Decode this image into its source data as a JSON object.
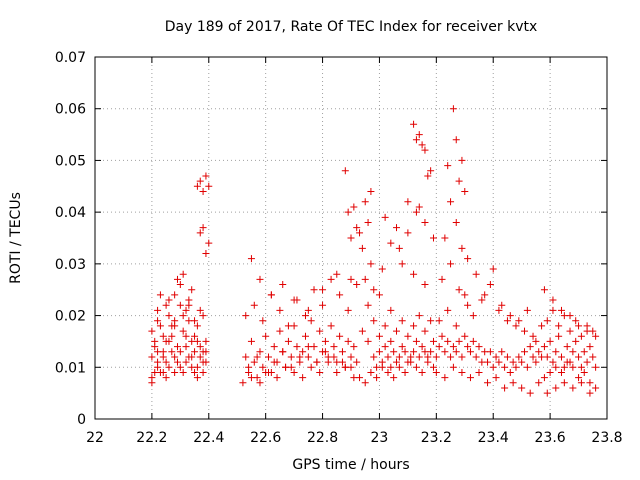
{
  "chart_data": {
    "type": "scatter",
    "title": "Day 189 of 2017, Rate Of TEC Index for receiver kvtx",
    "xlabel": "GPS time / hours",
    "ylabel": "ROTI / TECUs",
    "xlim": [
      22,
      23.8
    ],
    "ylim": [
      0,
      0.07
    ],
    "xticks": [
      "22",
      "22.2",
      "22.4",
      "22.6",
      "22.8",
      "23",
      "23.2",
      "23.4",
      "23.6",
      "23.8"
    ],
    "yticks": [
      "0",
      "0.01",
      "0.02",
      "0.03",
      "0.04",
      "0.05",
      "0.06",
      "0.07"
    ],
    "grid": true,
    "marker": "+",
    "marker_color": "#e00000",
    "grid_color": "#a0a0a0",
    "series": [
      {
        "x": [
          22.2,
          22.21,
          22.22,
          22.23,
          22.24,
          22.25,
          22.26,
          22.27,
          22.28,
          22.29,
          22.3,
          22.31,
          22.32,
          22.33,
          22.34,
          22.35,
          22.36,
          22.37,
          22.38,
          22.39,
          22.2,
          22.21,
          22.22,
          22.23,
          22.24,
          22.25,
          22.26,
          22.27,
          22.28,
          22.29,
          22.3,
          22.31,
          22.32,
          22.33,
          22.34,
          22.35,
          22.36,
          22.37,
          22.38,
          22.39,
          22.2,
          22.22,
          22.24,
          22.26,
          22.28,
          22.3,
          22.32,
          22.34,
          22.36,
          22.38,
          22.21,
          22.23,
          22.25,
          22.27,
          22.29,
          22.31,
          22.33,
          22.35,
          22.37,
          22.39,
          22.2,
          22.22,
          22.24,
          22.26,
          22.28,
          22.3,
          22.32,
          22.34,
          22.36,
          22.38,
          22.22,
          22.25,
          22.28,
          22.31,
          22.33,
          22.35,
          22.36,
          22.37,
          22.38,
          22.39,
          22.4,
          22.37,
          22.38,
          22.39,
          22.4,
          22.53,
          22.54,
          22.55,
          22.56,
          22.57,
          22.58,
          22.59,
          22.6,
          22.61,
          22.62,
          22.63,
          22.64,
          22.65,
          22.66,
          22.67,
          22.68,
          22.69,
          22.7,
          22.71,
          22.72,
          22.73,
          22.74,
          22.75,
          22.76,
          22.77,
          22.78,
          22.79,
          22.8,
          22.81,
          22.82,
          22.83,
          22.84,
          22.85,
          22.86,
          22.87,
          22.88,
          22.89,
          22.9,
          22.91,
          22.92,
          22.52,
          22.55,
          22.58,
          22.61,
          22.64,
          22.67,
          22.7,
          22.73,
          22.76,
          22.79,
          22.82,
          22.85,
          22.88,
          22.91,
          22.53,
          22.56,
          22.59,
          22.62,
          22.65,
          22.68,
          22.71,
          22.74,
          22.77,
          22.8,
          22.83,
          22.86,
          22.89,
          22.92,
          22.54,
          22.57,
          22.6,
          22.63,
          22.66,
          22.69,
          22.72,
          22.75,
          22.78,
          22.81,
          22.84,
          22.87,
          22.9,
          22.55,
          22.58,
          22.62,
          22.66,
          22.7,
          22.75,
          22.8,
          22.85,
          22.9,
          22.88,
          22.89,
          22.9,
          22.91,
          22.92,
          22.93,
          22.94,
          22.95,
          22.96,
          22.97,
          22.98,
          22.99,
          23.0,
          23.01,
          23.02,
          23.03,
          23.04,
          23.05,
          23.06,
          23.07,
          23.08,
          23.09,
          23.1,
          23.11,
          23.12,
          23.13,
          23.14,
          23.15,
          23.16,
          23.17,
          22.93,
          22.95,
          22.97,
          22.99,
          23.01,
          23.03,
          23.05,
          23.07,
          23.09,
          23.11,
          23.13,
          23.15,
          23.17,
          23.19,
          22.94,
          22.96,
          22.98,
          23.0,
          23.02,
          23.04,
          23.06,
          23.08,
          23.1,
          23.12,
          23.14,
          23.16,
          23.18,
          22.95,
          22.98,
          23.01,
          23.04,
          23.07,
          23.1,
          23.13,
          23.16,
          23.19,
          22.96,
          23.0,
          23.04,
          23.08,
          23.12,
          23.16,
          22.97,
          23.02,
          23.06,
          23.1,
          23.14,
          23.12,
          23.13,
          23.14,
          23.15,
          23.16,
          23.17,
          23.18,
          23.18,
          23.19,
          23.2,
          23.21,
          23.22,
          23.23,
          23.24,
          23.25,
          23.26,
          23.27,
          23.28,
          23.29,
          23.3,
          23.31,
          23.32,
          23.33,
          23.34,
          23.35,
          23.36,
          23.37,
          23.38,
          23.39,
          23.4,
          23.41,
          23.42,
          23.43,
          23.44,
          23.45,
          23.46,
          23.47,
          23.48,
          23.49,
          23.5,
          23.51,
          23.52,
          23.53,
          23.54,
          23.55,
          23.56,
          23.57,
          23.2,
          23.23,
          23.26,
          23.29,
          23.32,
          23.35,
          23.38,
          23.41,
          23.44,
          23.47,
          23.5,
          23.53,
          23.56,
          23.21,
          23.24,
          23.27,
          23.3,
          23.33,
          23.36,
          23.39,
          23.42,
          23.45,
          23.48,
          23.51,
          23.54,
          23.57,
          23.22,
          23.25,
          23.28,
          23.31,
          23.34,
          23.37,
          23.4,
          23.43,
          23.46,
          23.49,
          23.52,
          23.55,
          23.24,
          23.26,
          23.27,
          23.28,
          23.29,
          23.3,
          23.25,
          23.27,
          23.29,
          23.31,
          23.23,
          23.58,
          23.59,
          23.6,
          23.61,
          23.62,
          23.63,
          23.64,
          23.65,
          23.66,
          23.67,
          23.68,
          23.69,
          23.7,
          23.71,
          23.72,
          23.73,
          23.74,
          23.75,
          23.76,
          23.58,
          23.6,
          23.62,
          23.64,
          23.66,
          23.68,
          23.7,
          23.72,
          23.74,
          23.76,
          23.59,
          23.61,
          23.63,
          23.65,
          23.67,
          23.69,
          23.71,
          23.73,
          23.75,
          23.58,
          23.61,
          23.64,
          23.67,
          23.7,
          23.73,
          23.76,
          23.59,
          23.62,
          23.65,
          23.68,
          23.71,
          23.74
        ],
        "y": [
          0.012,
          0.015,
          0.01,
          0.018,
          0.013,
          0.011,
          0.02,
          0.016,
          0.012,
          0.014,
          0.022,
          0.017,
          0.011,
          0.019,
          0.015,
          0.013,
          0.01,
          0.014,
          0.011,
          0.013,
          0.008,
          0.009,
          0.011,
          0.009,
          0.012,
          0.008,
          0.01,
          0.013,
          0.009,
          0.011,
          0.01,
          0.009,
          0.014,
          0.012,
          0.01,
          0.009,
          0.008,
          0.012,
          0.009,
          0.011,
          0.017,
          0.021,
          0.016,
          0.023,
          0.019,
          0.026,
          0.021,
          0.025,
          0.018,
          0.02,
          0.014,
          0.024,
          0.022,
          0.018,
          0.027,
          0.02,
          0.023,
          0.016,
          0.021,
          0.015,
          0.007,
          0.013,
          0.009,
          0.015,
          0.018,
          0.013,
          0.016,
          0.012,
          0.015,
          0.013,
          0.019,
          0.015,
          0.024,
          0.028,
          0.022,
          0.019,
          0.045,
          0.046,
          0.044,
          0.047,
          0.045,
          0.036,
          0.037,
          0.032,
          0.034,
          0.012,
          0.009,
          0.015,
          0.011,
          0.008,
          0.013,
          0.01,
          0.016,
          0.012,
          0.009,
          0.014,
          0.011,
          0.017,
          0.013,
          0.01,
          0.015,
          0.012,
          0.018,
          0.014,
          0.011,
          0.013,
          0.016,
          0.012,
          0.019,
          0.014,
          0.011,
          0.017,
          0.013,
          0.015,
          0.012,
          0.018,
          0.014,
          0.011,
          0.016,
          0.013,
          0.01,
          0.015,
          0.012,
          0.014,
          0.011,
          0.007,
          0.008,
          0.007,
          0.009,
          0.008,
          0.01,
          0.009,
          0.008,
          0.01,
          0.009,
          0.011,
          0.009,
          0.01,
          0.008,
          0.02,
          0.022,
          0.019,
          0.024,
          0.021,
          0.018,
          0.023,
          0.02,
          0.025,
          0.022,
          0.027,
          0.024,
          0.021,
          0.026,
          0.01,
          0.012,
          0.009,
          0.011,
          0.013,
          0.01,
          0.012,
          0.014,
          0.011,
          0.013,
          0.012,
          0.011,
          0.01,
          0.031,
          0.027,
          0.024,
          0.026,
          0.023,
          0.021,
          0.025,
          0.028,
          0.027,
          0.048,
          0.04,
          0.035,
          0.041,
          0.037,
          0.036,
          0.033,
          0.042,
          0.038,
          0.03,
          0.012,
          0.01,
          0.013,
          0.011,
          0.014,
          0.012,
          0.01,
          0.013,
          0.011,
          0.012,
          0.014,
          0.013,
          0.011,
          0.012,
          0.013,
          0.015,
          0.012,
          0.014,
          0.013,
          0.012,
          0.008,
          0.007,
          0.009,
          0.008,
          0.01,
          0.009,
          0.008,
          0.01,
          0.009,
          0.011,
          0.01,
          0.009,
          0.011,
          0.01,
          0.017,
          0.015,
          0.019,
          0.016,
          0.018,
          0.015,
          0.017,
          0.019,
          0.016,
          0.018,
          0.02,
          0.017,
          0.019,
          0.027,
          0.025,
          0.029,
          0.034,
          0.033,
          0.036,
          0.04,
          0.038,
          0.035,
          0.022,
          0.024,
          0.021,
          0.03,
          0.028,
          0.026,
          0.044,
          0.039,
          0.037,
          0.042,
          0.041,
          0.057,
          0.054,
          0.055,
          0.053,
          0.052,
          0.047,
          0.048,
          0.013,
          0.015,
          0.012,
          0.014,
          0.016,
          0.013,
          0.015,
          0.012,
          0.014,
          0.013,
          0.015,
          0.012,
          0.016,
          0.014,
          0.013,
          0.015,
          0.012,
          0.014,
          0.011,
          0.013,
          0.011,
          0.013,
          0.01,
          0.012,
          0.011,
          0.013,
          0.01,
          0.012,
          0.009,
          0.011,
          0.01,
          0.012,
          0.011,
          0.013,
          0.01,
          0.014,
          0.012,
          0.011,
          0.013,
          0.012,
          0.009,
          0.008,
          0.01,
          0.009,
          0.008,
          0.009,
          0.007,
          0.008,
          0.006,
          0.007,
          0.006,
          0.005,
          0.007,
          0.019,
          0.021,
          0.018,
          0.024,
          0.02,
          0.023,
          0.026,
          0.021,
          0.019,
          0.018,
          0.017,
          0.016,
          0.018,
          0.027,
          0.03,
          0.025,
          0.022,
          0.028,
          0.024,
          0.029,
          0.022,
          0.02,
          0.019,
          0.021,
          0.015,
          0.049,
          0.06,
          0.054,
          0.046,
          0.05,
          0.044,
          0.042,
          0.038,
          0.033,
          0.031,
          0.035,
          0.014,
          0.012,
          0.015,
          0.011,
          0.013,
          0.016,
          0.012,
          0.01,
          0.014,
          0.011,
          0.013,
          0.015,
          0.012,
          0.01,
          0.013,
          0.011,
          0.014,
          0.012,
          0.01,
          0.008,
          0.009,
          0.01,
          0.009,
          0.011,
          0.01,
          0.008,
          0.009,
          0.007,
          0.006,
          0.019,
          0.021,
          0.018,
          0.02,
          0.017,
          0.019,
          0.016,
          0.018,
          0.017,
          0.025,
          0.023,
          0.021,
          0.02,
          0.018,
          0.017,
          0.016,
          0.005,
          0.006,
          0.007,
          0.006,
          0.007,
          0.005
        ]
      }
    ]
  }
}
